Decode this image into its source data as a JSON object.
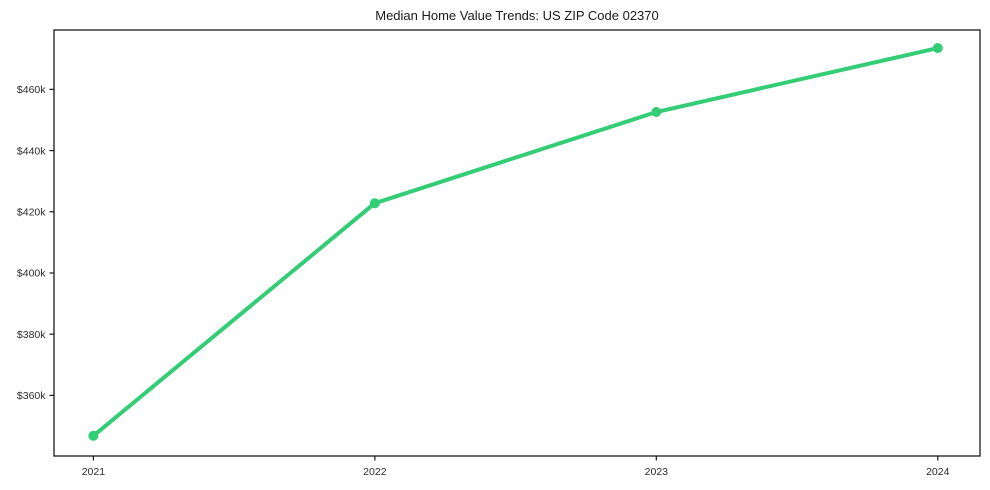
{
  "figure": {
    "background": "#ffffff"
  },
  "chart_data": {
    "type": "line",
    "title": "Median Home Value Trends: US ZIP Code 02370",
    "series_name": "Median home value",
    "x": [
      2021,
      2022,
      2023,
      2024
    ],
    "values": [
      346800,
      422800,
      452600,
      473500
    ],
    "x_tick_labels": [
      "2021",
      "2022",
      "2023",
      "2024"
    ],
    "y_tick_values": [
      360000,
      380000,
      400000,
      420000,
      440000,
      460000
    ],
    "y_tick_labels": [
      "$360k",
      "$380k",
      "$400k",
      "$420k",
      "$440k",
      "$460k"
    ],
    "xlim": [
      2020.86,
      2024.15
    ],
    "ylim": [
      340200,
      479400
    ],
    "xlabel": "",
    "ylabel": "",
    "grid": false,
    "legend": "none",
    "line_color": "#32cd75",
    "line_width": 4,
    "marker": "circle",
    "marker_size": 5,
    "axis_color": "#1a1a1a",
    "tick_label_color": "#2b2b2b",
    "plot_bg": "#ffffff"
  }
}
